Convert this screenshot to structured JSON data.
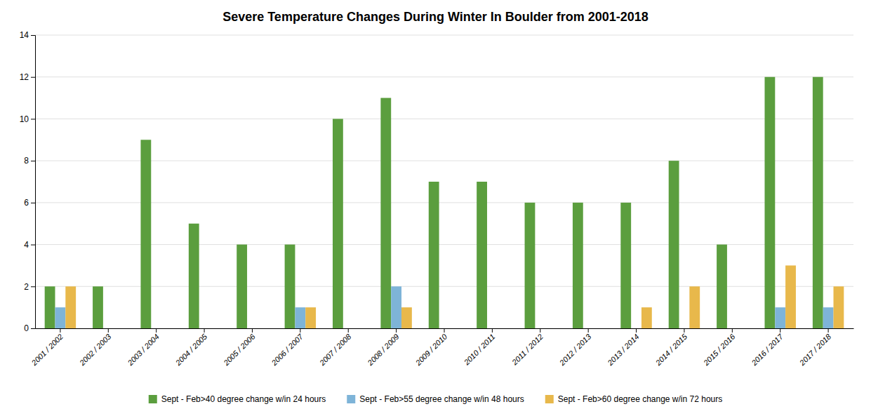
{
  "chart_data": {
    "type": "bar",
    "title": "Severe Temperature Changes During Winter In Boulder from 2001-2018",
    "categories": [
      "2001 / 2002",
      "2002 / 2003",
      "2003 / 2004",
      "2004 / 2005",
      "2005 / 2006",
      "2006 / 2007",
      "2007 / 2008",
      "2008 / 2009",
      "2009 / 2010",
      "2010 / 2011",
      "2011 / 2012",
      "2012 / 2013",
      "2013 / 2014",
      "2014 / 2015",
      "2015 / 2016",
      "2016 / 2017",
      "2017 / 2018"
    ],
    "series": [
      {
        "name": "Sept - Feb>40 degree change w/in 24 hours",
        "color": "#5b9e3e",
        "values": [
          2,
          2,
          9,
          5,
          4,
          4,
          10,
          11,
          7,
          7,
          6,
          6,
          6,
          8,
          4,
          12,
          12
        ]
      },
      {
        "name": "Sept - Feb>55 degree change w/in 48 hours",
        "color": "#7eb4d8",
        "values": [
          1,
          0,
          0,
          0,
          0,
          1,
          0,
          2,
          0,
          0,
          0,
          0,
          0,
          0,
          0,
          1,
          1
        ]
      },
      {
        "name": "Sept - Feb>60 degree change w/in 72 hours",
        "color": "#e8b84b",
        "values": [
          2,
          0,
          0,
          0,
          0,
          1,
          0,
          1,
          0,
          0,
          0,
          0,
          1,
          2,
          0,
          3,
          2
        ]
      }
    ],
    "ylim": [
      0,
      14
    ],
    "yticks": [
      0,
      2,
      4,
      6,
      8,
      10,
      12,
      14
    ],
    "grid": true,
    "legend": "bottom"
  }
}
